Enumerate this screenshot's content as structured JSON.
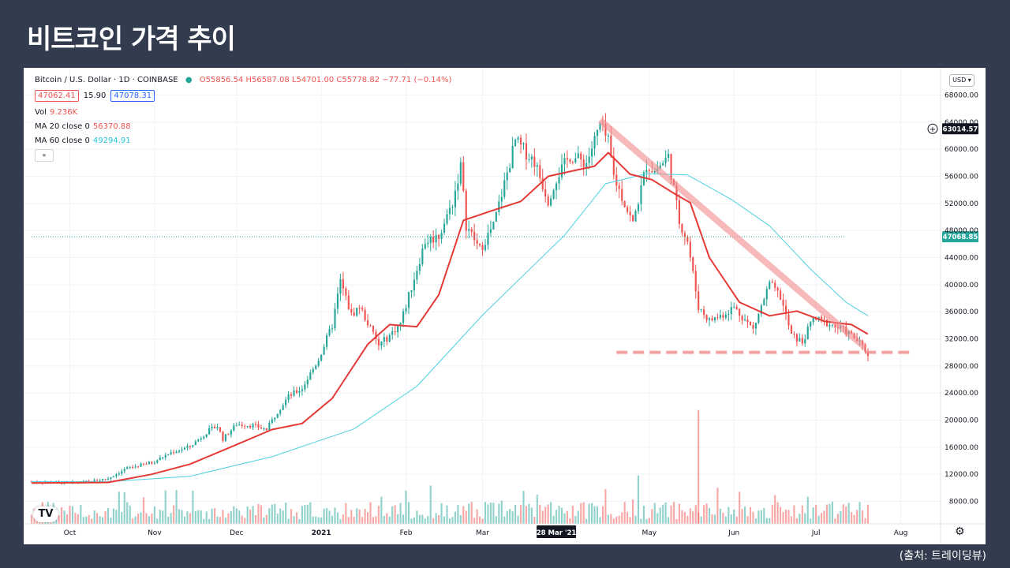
{
  "title": "비트코인 가격 추이",
  "source": "(출처: 트레이딩뷰)",
  "legend": {
    "symbol": "Bitcoin / U.S. Dollar · 1D · COINBASE",
    "ohlc": "O55856.54 H56587.08 L54701.00 C55778.82 −77.71 (−0.14%)",
    "bid": "47062.41",
    "spread": "15.90",
    "ask": "47078.31",
    "vol_label": "Vol",
    "vol_value": "9.236K",
    "ma20_label": "MA 20 close 0",
    "ma20_value": "56370.88",
    "ma60_label": "MA 60 close 0",
    "ma60_value": "49294.91",
    "collapse": "«"
  },
  "toolbar": {
    "currency": "USD ▾",
    "settings_icon": "gear-icon",
    "logo": "TV"
  },
  "colors": {
    "up": "#26a69a",
    "down": "#ef5350",
    "ma20": "#e53935",
    "ma60": "#4dd0e1",
    "trend": "#f28b8b",
    "support": "#f28b8b",
    "price_line": "#26a69a"
  },
  "chart_data": {
    "type": "candlestick",
    "y_ticks": [
      "68000.00",
      "64000.00",
      "60000.00",
      "56000.00",
      "52000.00",
      "48000.00",
      "44000.00",
      "40000.00",
      "36000.00",
      "32000.00",
      "28000.00",
      "24000.00",
      "20000.00",
      "16000.00",
      "12000.00",
      "8000.00"
    ],
    "ylim": [
      4000,
      69500
    ],
    "x_ticks": [
      {
        "label": "Oct",
        "day": 0
      },
      {
        "label": "Nov",
        "day": 31
      },
      {
        "label": "Dec",
        "day": 61
      },
      {
        "label": "2021",
        "day": 92
      },
      {
        "label": "Feb",
        "day": 123
      },
      {
        "label": "Mar",
        "day": 151
      },
      {
        "label": "May",
        "day": 212
      },
      {
        "label": "Jun",
        "day": 243
      },
      {
        "label": "Jul",
        "day": 273
      },
      {
        "label": "Aug",
        "day": 304
      }
    ],
    "x_axis_start": "2020-10-01",
    "x_range_days": [
      -14,
      318
    ],
    "crosshair_date_label": "28 Mar '21",
    "crosshair_day": 178,
    "current_price_label": "47068.85",
    "current_price": 47068.85,
    "crosshair_price_label": "63014.57",
    "crosshair_price": 63014.57,
    "price_path": [
      [
        "2020-09-17",
        10900
      ],
      [
        "2020-10-01",
        10700
      ],
      [
        "2020-10-08",
        10900
      ],
      [
        "2020-10-15",
        11400
      ],
      [
        "2020-10-22",
        12900
      ],
      [
        "2020-10-31",
        13700
      ],
      [
        "2020-11-07",
        15200
      ],
      [
        "2020-11-14",
        16100
      ],
      [
        "2020-11-21",
        18500
      ],
      [
        "2020-11-24",
        19100
      ],
      [
        "2020-11-26",
        17200
      ],
      [
        "2020-12-01",
        19400
      ],
      [
        "2020-12-07",
        19200
      ],
      [
        "2020-12-12",
        18600
      ],
      [
        "2020-12-16",
        21300
      ],
      [
        "2020-12-20",
        23500
      ],
      [
        "2020-12-25",
        24700
      ],
      [
        "2020-12-31",
        29000
      ],
      [
        "2021-01-05",
        34000
      ],
      [
        "2021-01-08",
        40500
      ],
      [
        "2021-01-12",
        35500
      ],
      [
        "2021-01-15",
        36800
      ],
      [
        "2021-01-22",
        31000
      ],
      [
        "2021-01-26",
        32500
      ],
      [
        "2021-01-30",
        34300
      ],
      [
        "2021-02-08",
        46400
      ],
      [
        "2021-02-13",
        47200
      ],
      [
        "2021-02-18",
        52100
      ],
      [
        "2021-02-21",
        57500
      ],
      [
        "2021-02-23",
        48800
      ],
      [
        "2021-02-28",
        45200
      ],
      [
        "2021-03-05",
        48700
      ],
      [
        "2021-03-13",
        61200
      ],
      [
        "2021-03-20",
        58200
      ],
      [
        "2021-03-25",
        52500
      ],
      [
        "2021-03-28",
        55800
      ],
      [
        "2021-04-02",
        59000
      ],
      [
        "2021-04-08",
        58000
      ],
      [
        "2021-04-13",
        63500
      ],
      [
        "2021-04-16",
        61000
      ],
      [
        "2021-04-18",
        56000
      ],
      [
        "2021-04-25",
        49000
      ],
      [
        "2021-04-30",
        57700
      ],
      [
        "2021-05-03",
        56800
      ],
      [
        "2021-05-08",
        58900
      ],
      [
        "2021-05-12",
        49300
      ],
      [
        "2021-05-15",
        46500
      ],
      [
        "2021-05-19",
        36700
      ],
      [
        "2021-05-23",
        34700
      ],
      [
        "2021-05-28",
        35600
      ],
      [
        "2021-06-01",
        36700
      ],
      [
        "2021-06-08",
        33400
      ],
      [
        "2021-06-14",
        40100
      ],
      [
        "2021-06-18",
        38200
      ],
      [
        "2021-06-22",
        32500
      ],
      [
        "2021-06-26",
        31500
      ],
      [
        "2021-06-30",
        35000
      ],
      [
        "2021-07-06",
        34200
      ],
      [
        "2021-07-12",
        33100
      ],
      [
        "2021-07-16",
        31800
      ],
      [
        "2021-07-20",
        29800
      ]
    ],
    "ma20_path": [
      [
        "2020-09-17",
        10700
      ],
      [
        "2020-10-15",
        10800
      ],
      [
        "2020-10-31",
        12000
      ],
      [
        "2020-11-14",
        13500
      ],
      [
        "2020-11-30",
        16200
      ],
      [
        "2020-12-14",
        18600
      ],
      [
        "2020-12-25",
        19500
      ],
      [
        "2021-01-05",
        23200
      ],
      [
        "2021-01-18",
        31200
      ],
      [
        "2021-01-26",
        34100
      ],
      [
        "2021-02-05",
        33800
      ],
      [
        "2021-02-13",
        38500
      ],
      [
        "2021-02-22",
        49500
      ],
      [
        "2021-03-05",
        51000
      ],
      [
        "2021-03-15",
        52300
      ],
      [
        "2021-03-25",
        56000
      ],
      [
        "2021-04-03",
        56800
      ],
      [
        "2021-04-11",
        57500
      ],
      [
        "2021-04-16",
        59500
      ],
      [
        "2021-04-24",
        56300
      ],
      [
        "2021-05-02",
        55500
      ],
      [
        "2021-05-10",
        53500
      ],
      [
        "2021-05-16",
        52100
      ],
      [
        "2021-05-23",
        44000
      ],
      [
        "2021-06-03",
        37400
      ],
      [
        "2021-06-14",
        35400
      ],
      [
        "2021-06-24",
        36100
      ],
      [
        "2021-07-04",
        34600
      ],
      [
        "2021-07-14",
        34100
      ],
      [
        "2021-07-20",
        32700
      ]
    ],
    "ma60_path": [
      [
        "2020-09-17",
        10900
      ],
      [
        "2020-10-15",
        10900
      ],
      [
        "2020-11-14",
        11700
      ],
      [
        "2020-12-14",
        14600
      ],
      [
        "2021-01-13",
        18700
      ],
      [
        "2021-02-05",
        25000
      ],
      [
        "2021-03-01",
        35500
      ],
      [
        "2021-03-31",
        47300
      ],
      [
        "2021-04-15",
        54900
      ],
      [
        "2021-04-30",
        56400
      ],
      [
        "2021-05-15",
        56200
      ],
      [
        "2021-05-31",
        52600
      ],
      [
        "2021-06-14",
        48700
      ],
      [
        "2021-06-29",
        42300
      ],
      [
        "2021-07-12",
        37400
      ],
      [
        "2021-07-20",
        35400
      ]
    ],
    "volume_max_marker": 21500,
    "annotations": {
      "downtrend_line": [
        [
          "2021-04-13",
          64300
        ],
        [
          "2021-07-19",
          30700
        ]
      ],
      "support_line": {
        "y": 30000,
        "from": "2021-04-19",
        "to": "2021-08-05"
      }
    }
  }
}
